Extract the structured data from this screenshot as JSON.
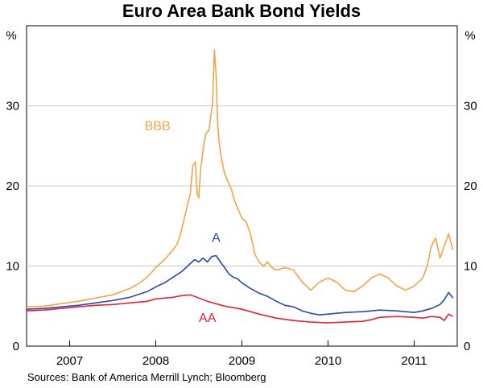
{
  "chart_data": {
    "type": "line",
    "title": "Euro Area Bank Bond Yields",
    "ylabel_left": "%",
    "ylabel_right": "%",
    "xlabel": "",
    "ylim": [
      0,
      40
    ],
    "yticks": [
      0,
      10,
      20,
      30
    ],
    "xlim": [
      2006.5,
      2011.5
    ],
    "xticks": [
      "2007",
      "2008",
      "2009",
      "2010",
      "2011"
    ],
    "grid": true,
    "source": "Sources: Bank of America Merrill Lynch; Bloomberg",
    "series": [
      {
        "name": "BBB",
        "color": "#f5a34a",
        "x": [
          2006.5,
          2006.7,
          2006.9,
          2007.1,
          2007.3,
          2007.5,
          2007.6,
          2007.7,
          2007.8,
          2007.9,
          2008.0,
          2008.1,
          2008.2,
          2008.25,
          2008.3,
          2008.35,
          2008.4,
          2008.43,
          2008.46,
          2008.48,
          2008.5,
          2008.52,
          2008.55,
          2008.58,
          2008.62,
          2008.66,
          2008.68,
          2008.7,
          2008.72,
          2008.74,
          2008.77,
          2008.8,
          2008.84,
          2008.88,
          2008.92,
          2008.96,
          2009.0,
          2009.05,
          2009.1,
          2009.15,
          2009.2,
          2009.25,
          2009.3,
          2009.35,
          2009.4,
          2009.5,
          2009.6,
          2009.7,
          2009.8,
          2009.9,
          2010.0,
          2010.1,
          2010.2,
          2010.3,
          2010.4,
          2010.5,
          2010.6,
          2010.7,
          2010.8,
          2010.9,
          2011.0,
          2011.05,
          2011.1,
          2011.15,
          2011.2,
          2011.25,
          2011.3,
          2011.35,
          2011.4,
          2011.45
        ],
        "values": [
          4.9,
          5.0,
          5.3,
          5.6,
          6.0,
          6.4,
          6.8,
          7.2,
          7.8,
          8.6,
          9.8,
          10.8,
          12.0,
          12.8,
          14.5,
          16.8,
          19.0,
          22.5,
          23.0,
          19.0,
          18.5,
          22.0,
          24.5,
          26.5,
          27.0,
          30.5,
          37.0,
          34.0,
          27.5,
          25.0,
          23.0,
          21.5,
          20.5,
          19.5,
          18.0,
          17.0,
          16.0,
          15.5,
          14.0,
          11.5,
          10.5,
          10.0,
          10.5,
          9.8,
          9.5,
          9.8,
          9.5,
          8.0,
          7.0,
          8.0,
          8.5,
          8.0,
          7.0,
          6.8,
          7.5,
          8.5,
          9.0,
          8.5,
          7.5,
          7.0,
          7.5,
          8.0,
          8.5,
          10.0,
          12.5,
          13.5,
          11.0,
          12.5,
          14.0,
          12.0
        ]
      },
      {
        "name": "A",
        "color": "#2b4aa6",
        "x": [
          2006.5,
          2006.7,
          2006.9,
          2007.1,
          2007.3,
          2007.5,
          2007.7,
          2007.9,
          2008.0,
          2008.1,
          2008.2,
          2008.3,
          2008.4,
          2008.45,
          2008.5,
          2008.55,
          2008.6,
          2008.65,
          2008.7,
          2008.75,
          2008.8,
          2008.85,
          2008.9,
          2008.95,
          2009.0,
          2009.1,
          2009.2,
          2009.3,
          2009.4,
          2009.5,
          2009.6,
          2009.7,
          2009.8,
          2009.9,
          2010.0,
          2010.2,
          2010.4,
          2010.5,
          2010.6,
          2010.8,
          2011.0,
          2011.1,
          2011.2,
          2011.3,
          2011.35,
          2011.4,
          2011.45
        ],
        "values": [
          4.6,
          4.7,
          4.9,
          5.1,
          5.4,
          5.7,
          6.1,
          6.8,
          7.4,
          7.9,
          8.6,
          9.3,
          10.3,
          10.8,
          10.5,
          11.0,
          10.5,
          11.2,
          11.3,
          10.5,
          9.8,
          9.0,
          8.6,
          8.4,
          7.9,
          7.2,
          6.6,
          6.2,
          5.6,
          5.1,
          4.9,
          4.4,
          4.1,
          3.9,
          4.0,
          4.2,
          4.3,
          4.4,
          4.5,
          4.4,
          4.2,
          4.4,
          4.7,
          5.2,
          5.8,
          6.7,
          6.0
        ]
      },
      {
        "name": "AA",
        "color": "#e0253a",
        "x": [
          2006.5,
          2006.7,
          2006.9,
          2007.1,
          2007.3,
          2007.5,
          2007.7,
          2007.9,
          2008.0,
          2008.1,
          2008.2,
          2008.3,
          2008.4,
          2008.5,
          2008.6,
          2008.7,
          2008.8,
          2008.9,
          2009.0,
          2009.2,
          2009.4,
          2009.6,
          2009.8,
          2010.0,
          2010.2,
          2010.4,
          2010.5,
          2010.6,
          2010.8,
          2011.0,
          2011.1,
          2011.2,
          2011.3,
          2011.35,
          2011.4,
          2011.45
        ],
        "values": [
          4.4,
          4.5,
          4.7,
          4.9,
          5.1,
          5.2,
          5.4,
          5.6,
          5.9,
          6.0,
          6.1,
          6.3,
          6.4,
          6.0,
          5.6,
          5.3,
          5.0,
          4.8,
          4.6,
          4.0,
          3.5,
          3.2,
          3.0,
          2.9,
          3.0,
          3.1,
          3.3,
          3.6,
          3.7,
          3.6,
          3.5,
          3.7,
          3.6,
          3.2,
          4.0,
          3.7
        ]
      }
    ],
    "annotations": [
      {
        "text": "BBB",
        "x": 2008.02,
        "y": 27.0,
        "color": "#f5a34a"
      },
      {
        "text": "A",
        "x": 2008.7,
        "y": 13.0,
        "color": "#2b4aa6"
      },
      {
        "text": "AA",
        "x": 2008.6,
        "y": 3.0,
        "color": "#e0253a"
      }
    ]
  }
}
